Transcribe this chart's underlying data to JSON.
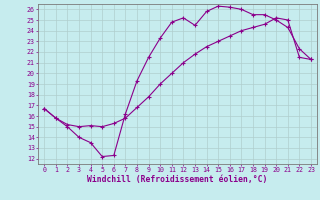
{
  "xlabel": "Windchill (Refroidissement éolien,°C)",
  "background_color": "#c6ecee",
  "line_color": "#8b008b",
  "grid_color": "#b0cece",
  "xlim": [
    -0.5,
    23.5
  ],
  "ylim": [
    11.5,
    26.5
  ],
  "xticks": [
    0,
    1,
    2,
    3,
    4,
    5,
    6,
    7,
    8,
    9,
    10,
    11,
    12,
    13,
    14,
    15,
    16,
    17,
    18,
    19,
    20,
    21,
    22,
    23
  ],
  "yticks": [
    12,
    13,
    14,
    15,
    16,
    17,
    18,
    19,
    20,
    21,
    22,
    23,
    24,
    25,
    26
  ],
  "line1_x": [
    0,
    1,
    2,
    3,
    4,
    5,
    6,
    7,
    8,
    9,
    10,
    11,
    12,
    13,
    14,
    15,
    16,
    17,
    18,
    19,
    20,
    21,
    22,
    23
  ],
  "line1_y": [
    16.7,
    15.8,
    15.0,
    14.0,
    13.5,
    12.2,
    12.3,
    16.2,
    19.3,
    21.5,
    23.3,
    24.8,
    25.2,
    24.5,
    25.8,
    26.3,
    26.2,
    26.0,
    25.5,
    25.5,
    25.0,
    24.3,
    22.3,
    21.3
  ],
  "line2_x": [
    0,
    1,
    2,
    3,
    4,
    5,
    6,
    7,
    8,
    9,
    10,
    11,
    12,
    13,
    14,
    15,
    16,
    17,
    18,
    19,
    20,
    21,
    22,
    23
  ],
  "line2_y": [
    16.7,
    15.8,
    15.2,
    15.0,
    15.1,
    15.0,
    15.3,
    15.8,
    16.8,
    17.8,
    19.0,
    20.0,
    21.0,
    21.8,
    22.5,
    23.0,
    23.5,
    24.0,
    24.3,
    24.6,
    25.2,
    25.0,
    21.5,
    21.3
  ],
  "marker": "+",
  "markersize": 3.5,
  "markeredgewidth": 0.8,
  "linewidth": 0.8,
  "tick_fontsize": 4.8,
  "xlabel_fontsize": 5.8,
  "spine_color": "#7a7a7a"
}
